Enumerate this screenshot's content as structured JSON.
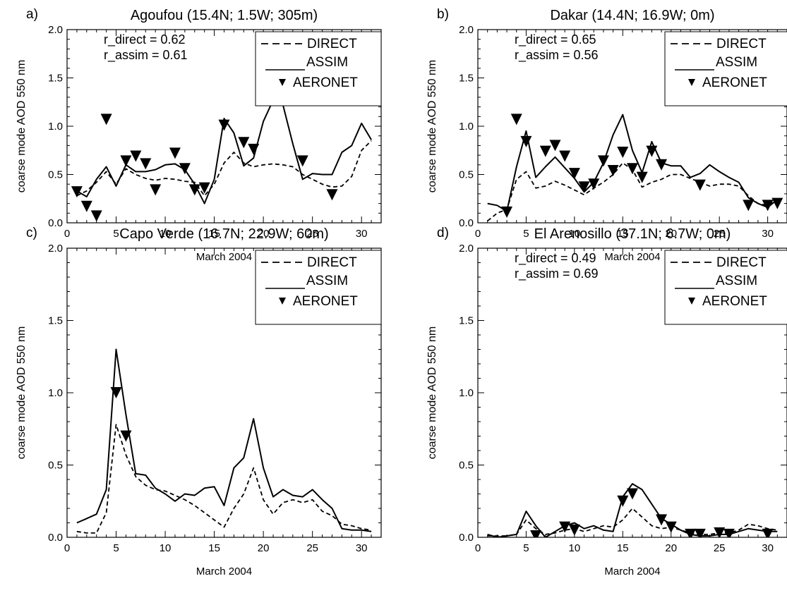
{
  "chart_data": [
    {
      "id": "a",
      "type": "line",
      "panel_letter": "a)",
      "title": "Agoufou (15.4N; 1.5W; 305m)",
      "xlabel": "March 2004",
      "ylabel": "coarse mode AOD 550 nm",
      "xlim": [
        0,
        32
      ],
      "ylim": [
        0,
        2.0
      ],
      "xticks": [
        0,
        5,
        10,
        15,
        20,
        25,
        30
      ],
      "yticks": [
        0.0,
        0.5,
        1.0,
        1.5,
        2.0
      ],
      "ytick_labels": [
        "0.0",
        "0.5",
        "1.0",
        "1.5",
        "2.0"
      ],
      "stats": [
        "r_direct  = 0.62",
        "r_assim = 0.61"
      ],
      "legend": [
        "DIRECT",
        "ASSIM",
        "AERONET"
      ],
      "series": [
        {
          "name": "DIRECT",
          "style": "dashed",
          "x": [
            1,
            2,
            3,
            4,
            5,
            6,
            7,
            8,
            9,
            10,
            11,
            12,
            13,
            14,
            15,
            16,
            17,
            18,
            19,
            20,
            21,
            22,
            23,
            24,
            25,
            26,
            27,
            28,
            29,
            30,
            31
          ],
          "y": [
            0.28,
            0.33,
            0.42,
            0.53,
            0.4,
            0.56,
            0.5,
            0.46,
            0.44,
            0.46,
            0.45,
            0.43,
            0.42,
            0.28,
            0.4,
            0.62,
            0.73,
            0.62,
            0.58,
            0.6,
            0.61,
            0.6,
            0.58,
            0.5,
            0.45,
            0.4,
            0.37,
            0.38,
            0.48,
            0.75,
            0.85
          ]
        },
        {
          "name": "ASSIM",
          "style": "solid",
          "x": [
            1,
            2,
            3,
            4,
            5,
            6,
            7,
            8,
            9,
            10,
            11,
            12,
            13,
            14,
            15,
            16,
            17,
            18,
            19,
            20,
            21,
            22,
            23,
            24,
            25,
            26,
            27,
            28,
            29,
            30,
            31
          ],
          "y": [
            0.33,
            0.27,
            0.45,
            0.58,
            0.38,
            0.6,
            0.53,
            0.53,
            0.55,
            0.6,
            0.61,
            0.55,
            0.4,
            0.2,
            0.45,
            1.08,
            0.93,
            0.59,
            0.67,
            1.05,
            1.27,
            1.22,
            0.82,
            0.45,
            0.51,
            0.5,
            0.5,
            0.73,
            0.8,
            1.03,
            0.86
          ]
        },
        {
          "name": "AERONET",
          "style": "marker",
          "x": [
            1,
            2,
            3,
            4,
            6,
            7,
            8,
            9,
            11,
            12,
            13,
            14,
            16,
            18,
            19,
            20,
            24,
            27
          ],
          "y": [
            0.32,
            0.17,
            0.07,
            1.07,
            0.64,
            0.69,
            0.61,
            0.34,
            0.72,
            0.56,
            0.34,
            0.36,
            1.01,
            0.83,
            0.76,
            1.27,
            0.64,
            0.29
          ]
        }
      ]
    },
    {
      "id": "b",
      "type": "line",
      "panel_letter": "b)",
      "title": "Dakar (14.4N; 16.9W; 0m)",
      "xlabel": "March 2004",
      "ylabel": "coarse mode AOD 550 nm",
      "xlim": [
        0,
        32
      ],
      "ylim": [
        0,
        2.0
      ],
      "xticks": [
        0,
        5,
        10,
        15,
        20,
        25,
        30
      ],
      "yticks": [
        0.0,
        0.5,
        1.0,
        1.5,
        2.0
      ],
      "ytick_labels": [
        "0.0",
        "0.5",
        "1.0",
        "1.5",
        "2.0"
      ],
      "stats": [
        "r_direct  = 0.65",
        "r_assim = 0.56"
      ],
      "legend": [
        "DIRECT",
        "ASSIM",
        "AERONET"
      ],
      "series": [
        {
          "name": "DIRECT",
          "style": "dashed",
          "x": [
            1,
            2,
            3,
            4,
            5,
            6,
            7,
            8,
            9,
            10,
            11,
            12,
            13,
            14,
            15,
            16,
            17,
            18,
            19,
            20,
            21,
            22,
            23,
            24,
            25,
            26,
            27,
            28,
            29,
            30,
            31
          ],
          "y": [
            0.02,
            0.1,
            0.14,
            0.45,
            0.53,
            0.36,
            0.38,
            0.43,
            0.39,
            0.34,
            0.29,
            0.36,
            0.42,
            0.5,
            0.62,
            0.55,
            0.37,
            0.42,
            0.45,
            0.5,
            0.5,
            0.46,
            0.42,
            0.38,
            0.4,
            0.4,
            0.38,
            0.28,
            0.2,
            0.18,
            0.25
          ]
        },
        {
          "name": "ASSIM",
          "style": "solid",
          "x": [
            1,
            2,
            3,
            4,
            5,
            6,
            7,
            8,
            9,
            10,
            11,
            12,
            13,
            14,
            15,
            16,
            17,
            18,
            19,
            20,
            21,
            22,
            23,
            24,
            25,
            26,
            27,
            28,
            29,
            30,
            31
          ],
          "y": [
            0.2,
            0.18,
            0.12,
            0.58,
            0.95,
            0.47,
            0.58,
            0.68,
            0.57,
            0.46,
            0.32,
            0.42,
            0.62,
            0.91,
            1.12,
            0.75,
            0.52,
            0.84,
            0.62,
            0.59,
            0.59,
            0.47,
            0.51,
            0.6,
            0.53,
            0.47,
            0.42,
            0.26,
            0.2,
            0.16,
            0.24
          ]
        },
        {
          "name": "AERONET",
          "style": "marker",
          "x": [
            3,
            4,
            5,
            7,
            8,
            9,
            10,
            11,
            12,
            13,
            14,
            15,
            16,
            17,
            18,
            19,
            23,
            28,
            30,
            31
          ],
          "y": [
            0.11,
            1.07,
            0.84,
            0.74,
            0.8,
            0.69,
            0.51,
            0.37,
            0.4,
            0.64,
            0.54,
            0.73,
            0.56,
            0.47,
            0.74,
            0.6,
            0.39,
            0.18,
            0.18,
            0.2
          ]
        }
      ]
    },
    {
      "id": "c",
      "type": "line",
      "panel_letter": "c)",
      "title": "Capo Verde (16.7N; 22.9W; 60m)",
      "xlabel": "March 2004",
      "ylabel": "coarse mode AOD 550 nm",
      "xlim": [
        0,
        32
      ],
      "ylim": [
        0,
        2.0
      ],
      "xticks": [
        0,
        5,
        10,
        15,
        20,
        25,
        30
      ],
      "yticks": [
        0.0,
        0.5,
        1.0,
        1.5,
        2.0
      ],
      "ytick_labels": [
        "0.0",
        "0.5",
        "1.0",
        "1.5",
        "2.0"
      ],
      "stats": [],
      "legend": [
        "DIRECT",
        "ASSIM",
        "AERONET"
      ],
      "series": [
        {
          "name": "DIRECT",
          "style": "dashed",
          "x": [
            1,
            2,
            3,
            4,
            5,
            6,
            7,
            8,
            9,
            10,
            11,
            12,
            13,
            14,
            15,
            16,
            17,
            18,
            19,
            20,
            21,
            22,
            23,
            24,
            25,
            26,
            27,
            28,
            29,
            30,
            31
          ],
          "y": [
            0.04,
            0.03,
            0.03,
            0.17,
            0.78,
            0.57,
            0.42,
            0.36,
            0.33,
            0.32,
            0.29,
            0.26,
            0.22,
            0.17,
            0.12,
            0.07,
            0.2,
            0.3,
            0.48,
            0.26,
            0.16,
            0.24,
            0.26,
            0.24,
            0.26,
            0.18,
            0.15,
            0.09,
            0.08,
            0.06,
            0.05
          ]
        },
        {
          "name": "ASSIM",
          "style": "solid",
          "x": [
            1,
            2,
            3,
            4,
            5,
            6,
            7,
            8,
            9,
            10,
            11,
            12,
            13,
            14,
            15,
            16,
            17,
            18,
            19,
            20,
            21,
            22,
            23,
            24,
            25,
            26,
            27,
            28,
            29,
            30,
            31
          ],
          "y": [
            0.1,
            0.13,
            0.16,
            0.33,
            1.3,
            0.85,
            0.44,
            0.43,
            0.34,
            0.3,
            0.25,
            0.3,
            0.29,
            0.34,
            0.35,
            0.22,
            0.48,
            0.55,
            0.82,
            0.48,
            0.28,
            0.33,
            0.29,
            0.28,
            0.33,
            0.26,
            0.2,
            0.06,
            0.05,
            0.05,
            0.04
          ]
        },
        {
          "name": "AERONET",
          "style": "marker",
          "x": [
            5,
            6
          ],
          "y": [
            1.0,
            0.7
          ]
        }
      ]
    },
    {
      "id": "d",
      "type": "line",
      "panel_letter": "d)",
      "title": "El Arenosillo (37.1N; 6.7W; 0m)",
      "xlabel": "March 2004",
      "ylabel": "coarse mode AOD 550 nm",
      "xlim": [
        0,
        32
      ],
      "ylim": [
        0,
        2.0
      ],
      "xticks": [
        0,
        5,
        10,
        15,
        20,
        25,
        30
      ],
      "yticks": [
        0.0,
        0.5,
        1.0,
        1.5,
        2.0
      ],
      "ytick_labels": [
        "0.0",
        "0.5",
        "1.0",
        "1.5",
        "2.0"
      ],
      "stats": [
        "r_direct  = 0.49",
        "r_assim = 0.69"
      ],
      "legend": [
        "DIRECT",
        "ASSIM",
        "AERONET"
      ],
      "series": [
        {
          "name": "DIRECT",
          "style": "dashed",
          "x": [
            1,
            2,
            3,
            4,
            5,
            6,
            7,
            8,
            9,
            10,
            11,
            12,
            13,
            14,
            15,
            16,
            17,
            18,
            19,
            20,
            21,
            22,
            23,
            24,
            25,
            26,
            27,
            28,
            29,
            30,
            31
          ],
          "y": [
            0.01,
            0.01,
            0.01,
            0.02,
            0.12,
            0.06,
            0.02,
            0.03,
            0.05,
            0.06,
            0.04,
            0.06,
            0.08,
            0.07,
            0.12,
            0.2,
            0.14,
            0.08,
            0.06,
            0.07,
            0.05,
            0.03,
            0.02,
            0.02,
            0.03,
            0.03,
            0.05,
            0.09,
            0.08,
            0.06,
            0.05
          ]
        },
        {
          "name": "ASSIM",
          "style": "solid",
          "x": [
            1,
            2,
            3,
            4,
            5,
            6,
            7,
            8,
            9,
            10,
            11,
            12,
            13,
            14,
            15,
            16,
            17,
            18,
            19,
            20,
            21,
            22,
            23,
            24,
            25,
            26,
            27,
            28,
            29,
            30,
            31
          ],
          "y": [
            0.02,
            0.0,
            0.01,
            0.02,
            0.18,
            0.08,
            0.0,
            0.04,
            0.08,
            0.1,
            0.06,
            0.08,
            0.05,
            0.04,
            0.28,
            0.37,
            0.33,
            0.23,
            0.13,
            0.09,
            0.05,
            0.02,
            0.01,
            0.01,
            0.02,
            0.02,
            0.04,
            0.06,
            0.05,
            0.04,
            0.04
          ]
        },
        {
          "name": "AERONET",
          "style": "marker",
          "x": [
            6,
            9,
            10,
            15,
            16,
            19,
            20,
            22,
            23,
            25,
            26,
            30
          ],
          "y": [
            0.01,
            0.07,
            0.05,
            0.25,
            0.3,
            0.12,
            0.07,
            0.02,
            0.02,
            0.03,
            0.02,
            0.02
          ]
        }
      ]
    }
  ]
}
